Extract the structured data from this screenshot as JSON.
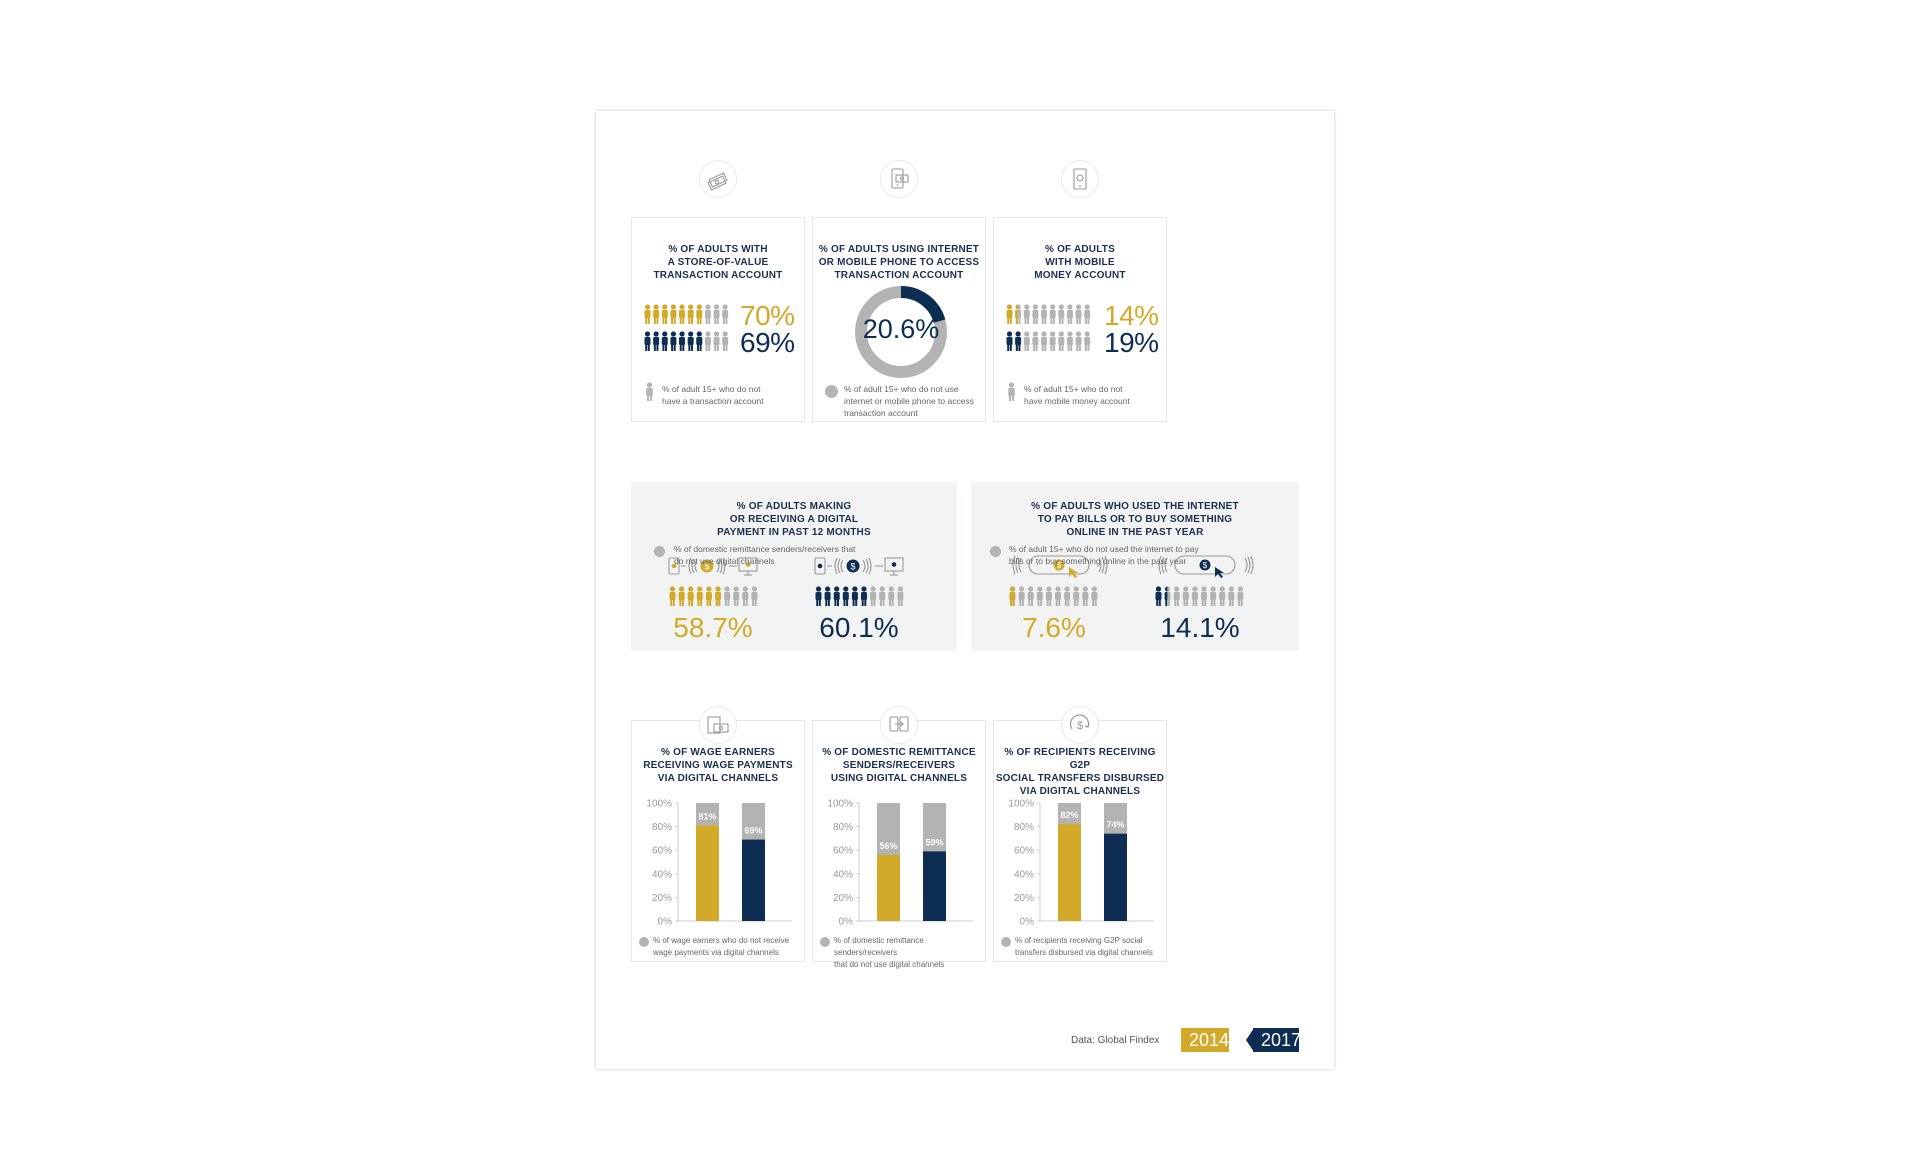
{
  "colors": {
    "gold": "#d3a92a",
    "navy": "#0e2d52",
    "gray": "#b3b3b3",
    "light": "#f2f3f3"
  },
  "cards": {
    "store_value": {
      "title": "% OF ADULTS WITH\nA STORE-OF-VALUE\nTRANSACTION ACCOUNT",
      "icon": "money-stack-icon",
      "pct_2014": "70%",
      "pct_2017": "69%",
      "note": "% of adult 15+ who do not\nhave a transaction account"
    },
    "internet_access": {
      "title": "% OF ADULTS USING INTERNET\nOR MOBILE PHONE TO ACCESS\nTRANSACTION ACCOUNT",
      "icon": "mobile-payment-icon",
      "value_label": "20.6%",
      "note": "% of adult 15+ who do not use\ninternet or mobile phone to access\ntransaction account"
    },
    "mobile_money": {
      "title": "% OF ADULTS\nWITH  MOBILE\nMONEY ACCOUNT",
      "icon": "phone-wallet-icon",
      "pct_2014": "14%",
      "pct_2017": "19%",
      "note": "% of adult 15+ who do not\nhave mobile money account"
    },
    "digital_payment": {
      "title": "% OF ADULTS MAKING\nOR RECEIVING A DIGITAL\nPAYMENT IN PAST 12 MONTHS",
      "pct_2014": "58.7%",
      "pct_2017": "60.1%",
      "note": "% of domestic remittance senders/receivers that\ndo not use digital channels"
    },
    "internet_bills": {
      "title": "% OF ADULTS WHO USED THE INTERNET\nTO PAY BILLS OR TO BUY SOMETHING\nONLINE IN THE PAST YEAR",
      "pct_2014": "7.6%",
      "pct_2017": "14.1%",
      "note": "% of adult 15+ who do not used the internet to pay\nbills or to buy something online in the past year"
    },
    "wage": {
      "title": "% OF WAGE EARNERS\nRECEIVING WAGE PAYMENTS\nVIA DIGITAL CHANNELS",
      "icon": "wage-payment-icon",
      "note": "% of wage earners who do not receive\nwage payments via digital channels"
    },
    "remittance": {
      "title": "% OF DOMESTIC REMITTANCE\nSENDERS/RECEIVERS\nUSING DIGITAL CHANNELS",
      "icon": "remittance-transfer-icon",
      "note": "% of domestic remittance senders/receivers\nthat do not use digital channels"
    },
    "g2p": {
      "title": "% OF RECIPIENTS RECEIVING G2P\nSOCIAL TRANSFERS DISBURSED\nVIA DIGITAL CHANNELS",
      "icon": "dollar-cycle-icon",
      "note": "% of recipients receiving G2P social\ntransfers disbursed via digital channels"
    }
  },
  "footer": {
    "source": "Data: Global Findex",
    "legend_2014": "2014",
    "legend_2017": "2017"
  },
  "chart_data": [
    {
      "type": "pictogram",
      "title": "% OF ADULTS WITH A STORE-OF-VALUE TRANSACTION ACCOUNT",
      "series": [
        {
          "name": "2014",
          "values": [
            70
          ]
        },
        {
          "name": "2017",
          "values": [
            69
          ]
        }
      ],
      "icons_total": 10
    },
    {
      "type": "pie",
      "title": "% OF ADULTS USING INTERNET OR MOBILE PHONE TO ACCESS TRANSACTION ACCOUNT",
      "values": [
        20.6,
        79.4
      ]
    },
    {
      "type": "pictogram",
      "title": "% OF ADULTS WITH  MOBILE MONEY ACCOUNT",
      "series": [
        {
          "name": "2014",
          "values": [
            14
          ]
        },
        {
          "name": "2017",
          "values": [
            19
          ]
        }
      ],
      "icons_total": 10
    },
    {
      "type": "pictogram",
      "title": "% OF ADULTS MAKING OR RECEIVING A DIGITAL PAYMENT IN PAST 12 MONTHS",
      "series": [
        {
          "name": "2014",
          "values": [
            58.7
          ]
        },
        {
          "name": "2017",
          "values": [
            60.1
          ]
        }
      ],
      "icons_total": 10
    },
    {
      "type": "pictogram",
      "title": "% OF ADULTS WHO USED THE INTERNET TO PAY BILLS OR TO BUY SOMETHING ONLINE IN THE PAST YEAR",
      "series": [
        {
          "name": "2014",
          "values": [
            7.6
          ]
        },
        {
          "name": "2017",
          "values": [
            14.1
          ]
        }
      ],
      "icons_total": 10
    },
    {
      "type": "bar",
      "title": "% OF WAGE EARNERS RECEIVING WAGE PAYMENTS VIA DIGITAL CHANNELS",
      "categories": [
        "2014",
        "2017"
      ],
      "values": [
        81,
        69
      ],
      "labels": [
        "81%",
        "69%"
      ],
      "ylim": [
        0,
        100
      ],
      "yticks": [
        "0%",
        "20%",
        "40%",
        "60%",
        "80%",
        "100%"
      ]
    },
    {
      "type": "bar",
      "title": "% OF DOMESTIC REMITTANCE SENDERS/RECEIVERS USING DIGITAL CHANNELS",
      "categories": [
        "2014",
        "2017"
      ],
      "values": [
        56,
        59
      ],
      "labels": [
        "56%",
        "59%"
      ],
      "ylim": [
        0,
        100
      ],
      "yticks": [
        "0%",
        "20%",
        "40%",
        "60%",
        "80%",
        "100%"
      ]
    },
    {
      "type": "bar",
      "title": "% OF RECIPIENTS RECEIVING G2P SOCIAL TRANSFERS DISBURSED VIA DIGITAL CHANNELS",
      "categories": [
        "2014",
        "2017"
      ],
      "values": [
        82,
        74
      ],
      "labels": [
        "82%",
        "74%"
      ],
      "ylim": [
        0,
        100
      ],
      "yticks": [
        "0%",
        "20%",
        "40%",
        "60%",
        "80%",
        "100%"
      ]
    }
  ]
}
